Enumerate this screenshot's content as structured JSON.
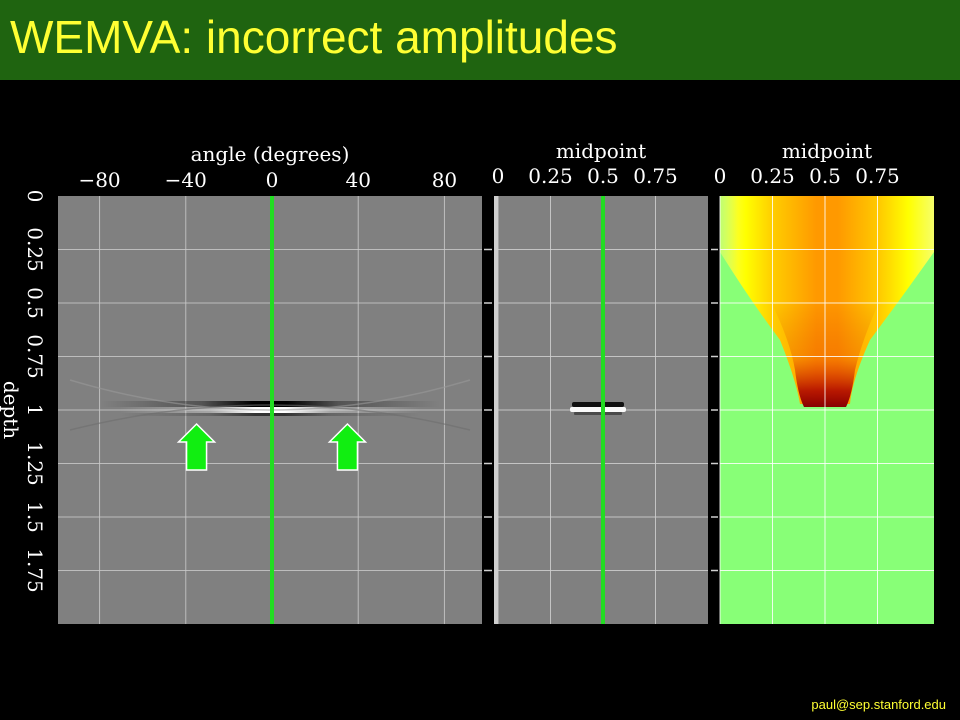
{
  "title": "WEMVA: incorrect amplitudes",
  "footer": "paul@sep.stanford.edu",
  "colors": {
    "header_bg": "#1f6410",
    "title": "#ffff33",
    "marker": "#22dd22",
    "arrow": "#11ee11"
  },
  "panels": {
    "angle": {
      "xlabel": "angle (degrees)",
      "xticks": [
        "−80",
        "−40",
        "0",
        "40",
        "80"
      ],
      "tick_values": [
        -80,
        -40,
        0,
        40,
        80
      ],
      "xrange": [
        -90,
        90
      ],
      "marker_value": 0
    },
    "midpoint1": {
      "xlabel": "midpoint",
      "xticks": [
        "0",
        "0.25",
        "0.5",
        "0.75"
      ],
      "tick_values": [
        0,
        0.25,
        0.5,
        0.75
      ],
      "xrange": [
        0,
        1
      ],
      "marker_value": 0.5
    },
    "midpoint2": {
      "xlabel": "midpoint",
      "xticks": [
        "0",
        "0.25",
        "0.5",
        "0.75"
      ],
      "tick_values": [
        0,
        0.25,
        0.5,
        0.75
      ],
      "xrange": [
        0,
        1
      ]
    }
  },
  "depth": {
    "label": "depth",
    "ticks": [
      "0",
      "0.25",
      "0.5",
      "0.75",
      "1",
      "1.25",
      "1.5",
      "1.75"
    ],
    "tick_values": [
      0,
      0.25,
      0.5,
      0.75,
      1,
      1.25,
      1.5,
      1.75
    ],
    "range": [
      0,
      2
    ],
    "reflector_depth": 0.97
  },
  "arrows": [
    {
      "angle": -35,
      "icon": "up-arrow-icon"
    },
    {
      "angle": 35,
      "icon": "up-arrow-icon"
    }
  ]
}
